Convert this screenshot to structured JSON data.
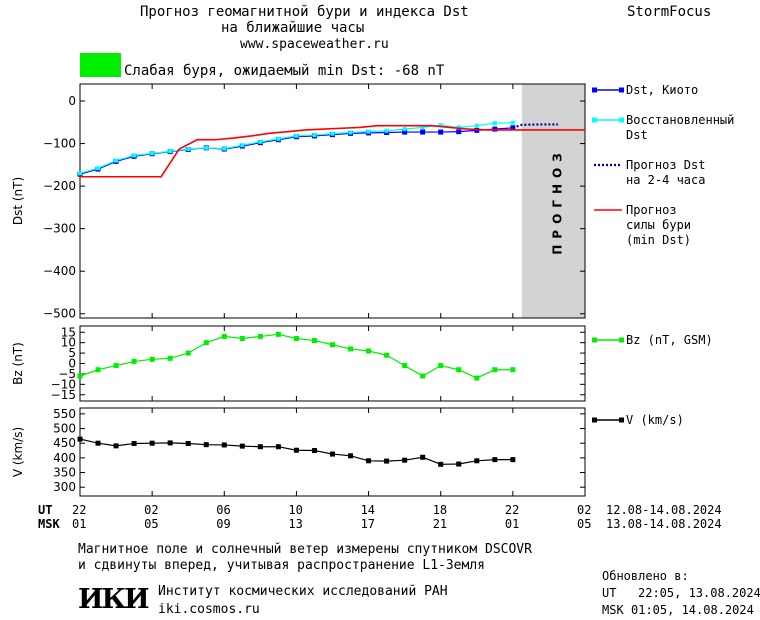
{
  "header": {
    "title_line1": "Прогноз геомагнитной бури и индекса Dst",
    "title_line2": "на ближайшие часы",
    "url": "www.spaceweather.ru",
    "brand": "StormFocus"
  },
  "status": {
    "text": "Слабая буря, ожидаемый min Dst: -68 nT",
    "color": "#00ee00"
  },
  "legends": {
    "dst_kyoto": "Dst, Киото",
    "restored_1": "Восстановленный",
    "restored_2": "Dst",
    "forecast_1": "Прогноз Dst",
    "forecast_2": "на 2-4 часа",
    "storm_1": "Прогноз",
    "storm_2": "силы бури",
    "storm_3": "(min Dst)",
    "bz": "Bz (nT, GSM)",
    "v": "V (km/s)"
  },
  "forecast_band_label": "ПРОГНОЗ",
  "time_axis": {
    "ut_label": "UT",
    "msk_label": "MSK",
    "ut_ticks": [
      "22",
      "02",
      "06",
      "10",
      "14",
      "18",
      "22",
      "02"
    ],
    "msk_ticks": [
      "01",
      "05",
      "09",
      "13",
      "17",
      "21",
      "01",
      "05"
    ],
    "ut_range": "12.08-14.08.2024",
    "msk_range": "13.08-14.08.2024"
  },
  "footer": {
    "note_1": "Магнитное поле и солнечный ветер измерены спутником DSCOVR",
    "note_2": "и сдвинуты вперед, учитывая распространение L1-Земля",
    "logo": "ИКИ",
    "institute": "Институт космических исследований РАН",
    "site": "iki.cosmos.ru",
    "updated_label": "Обновлено в:",
    "updated_ut_label": "UT",
    "updated_ut": "22:05, 13.08.2024",
    "updated_msk_label": "MSK",
    "updated_msk": "01:05, 14.08.2024"
  },
  "chart_data": [
    {
      "type": "line",
      "ylabel": "Dst (nT)",
      "ylim": [
        -510,
        40
      ],
      "yticks": [
        0,
        -100,
        -200,
        -300,
        -400,
        -500
      ],
      "x_hours_range": [
        0,
        28
      ],
      "forecast_region_hours": [
        24.5,
        28
      ],
      "series": [
        {
          "name": "Dst, Киото",
          "color": "#0000ff",
          "x": [
            0,
            1,
            2,
            3,
            4,
            5,
            6,
            7,
            8,
            9,
            10,
            11,
            12,
            13,
            14,
            15,
            16,
            17,
            18,
            19,
            20,
            21,
            22,
            23,
            24
          ],
          "y": [
            -172,
            -160,
            -142,
            -130,
            -124,
            -119,
            -114,
            -110,
            -113,
            -106,
            -98,
            -91,
            -84,
            -82,
            -79,
            -76,
            -75,
            -74,
            -73,
            -73,
            -73,
            -72,
            -69,
            -66,
            -63
          ]
        },
        {
          "name": "Восстановленный Dst",
          "color": "#00ffff",
          "x": [
            0,
            1,
            2,
            3,
            4,
            5,
            6,
            7,
            8,
            9,
            10,
            11,
            12,
            13,
            14,
            15,
            16,
            17,
            18,
            19,
            20,
            21,
            22,
            23,
            24
          ],
          "y": [
            -170,
            -158,
            -140,
            -128,
            -123,
            -118,
            -113,
            -110,
            -112,
            -104,
            -96,
            -89,
            -82,
            -80,
            -77,
            -74,
            -72,
            -70,
            -66,
            -62,
            -57,
            -62,
            -58,
            -52,
            -51
          ]
        },
        {
          "name": "Прогноз Dst на 2-4 часа",
          "color": "#0000aa",
          "x": [
            24,
            24.5,
            25.5,
            26.5
          ],
          "y": [
            -63,
            -56,
            -55,
            -55
          ]
        },
        {
          "name": "Прогноз силы бури (min Dst)",
          "color": "#ff0000",
          "x": [
            0,
            4.5,
            5.5,
            6.5,
            7.5,
            8.5,
            9.5,
            10.5,
            11.5,
            12.5,
            13.5,
            14.5,
            15.5,
            16.5,
            17.5,
            18.5,
            19.5,
            20.5,
            21.5,
            22.5,
            23.5,
            24.5,
            28
          ],
          "y": [
            -178,
            -178,
            -113,
            -91,
            -91,
            -87,
            -82,
            -76,
            -72,
            -68,
            -66,
            -64,
            -62,
            -58,
            -58,
            -58,
            -58,
            -62,
            -66,
            -68,
            -68,
            -68,
            -68
          ]
        }
      ]
    },
    {
      "type": "line",
      "ylabel": "Bz (nT)",
      "ylim": [
        -18,
        18
      ],
      "yticks": [
        15,
        10,
        5,
        0,
        -5,
        -10,
        -15
      ],
      "x_hours_range": [
        0,
        28
      ],
      "series": [
        {
          "name": "Bz (nT, GSM)",
          "color": "#00ee00",
          "x": [
            0,
            1,
            2,
            3,
            4,
            5,
            6,
            7,
            8,
            9,
            10,
            11,
            12,
            13,
            14,
            15,
            16,
            17,
            18,
            19,
            20,
            21,
            22,
            23,
            24
          ],
          "y": [
            -6,
            -3,
            -1,
            1,
            2,
            2.5,
            5,
            10,
            13,
            12,
            13,
            14,
            12,
            11,
            9,
            7,
            6,
            4,
            -1,
            -6,
            -1,
            -3,
            -7,
            -3,
            -3
          ]
        }
      ]
    },
    {
      "type": "line",
      "ylabel": "V (km/s)",
      "ylim": [
        270,
        570
      ],
      "yticks": [
        550,
        500,
        450,
        400,
        350,
        300
      ],
      "x_hours_range": [
        0,
        28
      ],
      "series": [
        {
          "name": "V (km/s)",
          "color": "#000000",
          "x": [
            0,
            1,
            2,
            3,
            4,
            5,
            6,
            7,
            8,
            9,
            10,
            11,
            12,
            13,
            14,
            15,
            16,
            17,
            18,
            19,
            20,
            21,
            22,
            23,
            24
          ],
          "y": [
            464,
            450,
            441,
            449,
            450,
            451,
            449,
            445,
            444,
            440,
            438,
            438,
            426,
            425,
            413,
            407,
            390,
            389,
            392,
            402,
            378,
            379,
            390,
            394,
            394
          ]
        }
      ]
    }
  ]
}
